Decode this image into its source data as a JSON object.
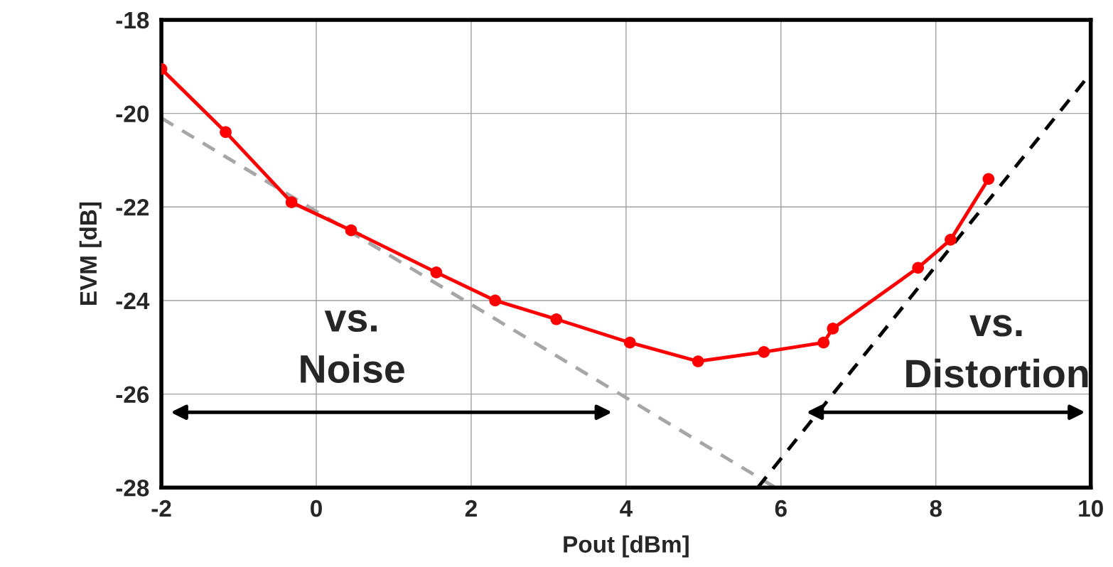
{
  "chart_data": {
    "type": "line",
    "xlabel": "Pout [dBm]",
    "ylabel": "EVM [dB]",
    "xlim": [
      -2,
      10
    ],
    "xticks": [
      -2,
      0,
      2,
      4,
      6,
      8,
      10
    ],
    "ylim": [
      -28,
      -18
    ],
    "yticks": [
      -28,
      -26,
      -24,
      -22,
      -20,
      -18
    ],
    "grid": true,
    "series": [
      {
        "color": "#ff0000",
        "marker": "circle",
        "line_style": "solid",
        "x": [
          -2,
          -1.17,
          -0.32,
          0.45,
          1.55,
          2.31,
          3.1,
          4.05,
          4.93,
          5.78,
          6.55,
          6.67,
          7.77,
          8.19,
          8.68
        ],
        "values": [
          -19.05,
          -20.4,
          -21.9,
          -22.5,
          -23.4,
          -24.0,
          -24.4,
          -24.9,
          -25.3,
          -25.1,
          -24.9,
          -24.6,
          -23.3,
          -22.7,
          -21.4
        ]
      },
      {
        "color": "#a6a6a6",
        "marker": "none",
        "line_style": "dashed",
        "x": [
          -2,
          5.93
        ],
        "values": [
          -20.1,
          -28
        ]
      },
      {
        "color": "#000000",
        "marker": "none",
        "line_style": "dashed",
        "x": [
          5.7,
          10
        ],
        "values": [
          -28,
          -19.14
        ]
      }
    ],
    "annotations": [
      "vs.\nNoise",
      "vs.\nDistortion"
    ]
  }
}
